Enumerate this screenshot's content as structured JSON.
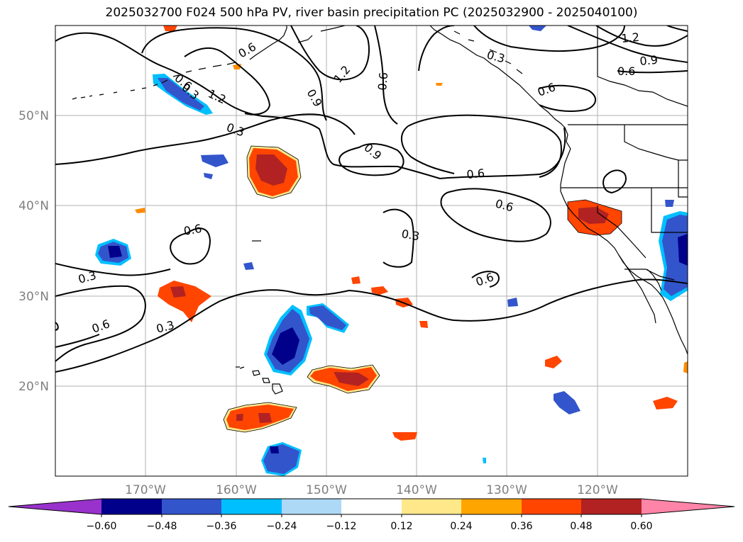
{
  "title": "2025032700 F024 500 hPa PV, river basin precipitation PC (2025032900 - 2025040100)",
  "lat_labels": [
    "50°N",
    "40°N",
    "30°N",
    "20°N"
  ],
  "lon_labels": [
    "170°W",
    "160°W",
    "150°W",
    "140°W",
    "130°W",
    "120°W"
  ],
  "contour_labels": [
    "0.3",
    "0.6",
    "0.9",
    "1.2"
  ],
  "colorbar": {
    "ticks": [
      "−0.60",
      "−0.48",
      "−0.36",
      "−0.24",
      "−0.12",
      "0.12",
      "0.24",
      "0.36",
      "0.48",
      "0.60"
    ],
    "colors": [
      "#9932cc",
      "#00008b",
      "#3355cc",
      "#00bfff",
      "#add8f6",
      "#ffffff",
      "#ffe88a",
      "#ffa500",
      "#ff4500",
      "#b22222",
      "#ff85a8"
    ]
  }
}
